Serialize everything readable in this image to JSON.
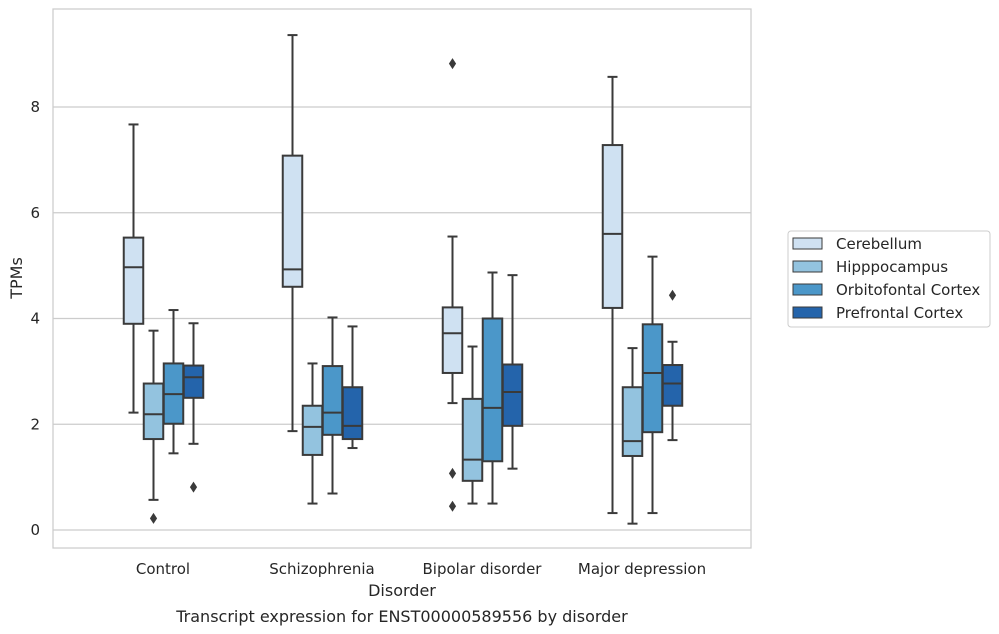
{
  "caption": "Transcript expression for ENST00000589556 by disorder",
  "colors": {
    "Cerebellum": "#cfe1f2",
    "Hipppocampus": "#93c3df",
    "Orbitofontal Cortex": "#4b97c9",
    "Prefrontal Cortex": "#2464ab",
    "line": "#3a3a3a",
    "grid": "#cccccc"
  },
  "chart_data": {
    "type": "box",
    "xlabel": "Disorder",
    "ylabel": "TPMs",
    "categories": [
      "Control",
      "Schizophrenia",
      "Bipolar disorder",
      "Major depression"
    ],
    "ylim": [
      -0.3,
      9.85
    ],
    "yticks": [
      0,
      2,
      4,
      6,
      8
    ],
    "grid": "horizontal",
    "legend_position": "right",
    "series": [
      {
        "name": "Cerebellum",
        "boxes": [
          {
            "whislo": 2.22,
            "q1": 3.9,
            "med": 4.97,
            "q3": 5.53,
            "whishi": 7.67,
            "fliers": []
          },
          {
            "whislo": 1.87,
            "q1": 4.6,
            "med": 4.93,
            "q3": 7.08,
            "whishi": 9.36,
            "fliers": []
          },
          {
            "whislo": 2.4,
            "q1": 2.97,
            "med": 3.72,
            "q3": 4.21,
            "whishi": 5.55,
            "fliers": [
              8.82,
              1.07,
              0.45
            ]
          },
          {
            "whislo": 0.32,
            "q1": 4.2,
            "med": 5.6,
            "q3": 7.28,
            "whishi": 8.57,
            "fliers": []
          }
        ]
      },
      {
        "name": "Hipppocampus",
        "boxes": [
          {
            "whislo": 0.57,
            "q1": 1.72,
            "med": 2.19,
            "q3": 2.77,
            "whishi": 3.77,
            "fliers": [
              0.22
            ]
          },
          {
            "whislo": 0.5,
            "q1": 1.42,
            "med": 1.95,
            "q3": 2.35,
            "whishi": 3.15,
            "fliers": []
          },
          {
            "whislo": 0.5,
            "q1": 0.93,
            "med": 1.33,
            "q3": 2.48,
            "whishi": 3.47,
            "fliers": []
          },
          {
            "whislo": 0.12,
            "q1": 1.4,
            "med": 1.68,
            "q3": 2.7,
            "whishi": 3.44,
            "fliers": []
          }
        ]
      },
      {
        "name": "Orbitofontal Cortex",
        "boxes": [
          {
            "whislo": 1.45,
            "q1": 2.01,
            "med": 2.57,
            "q3": 3.15,
            "whishi": 4.16,
            "fliers": []
          },
          {
            "whislo": 0.69,
            "q1": 1.8,
            "med": 2.22,
            "q3": 3.1,
            "whishi": 4.02,
            "fliers": []
          },
          {
            "whislo": 0.5,
            "q1": 1.3,
            "med": 2.31,
            "q3": 4.0,
            "whishi": 4.87,
            "fliers": []
          },
          {
            "whislo": 0.32,
            "q1": 1.85,
            "med": 2.97,
            "q3": 3.89,
            "whishi": 5.17,
            "fliers": []
          }
        ]
      },
      {
        "name": "Prefrontal Cortex",
        "boxes": [
          {
            "whislo": 1.63,
            "q1": 2.5,
            "med": 2.89,
            "q3": 3.11,
            "whishi": 3.91,
            "fliers": [
              0.81
            ]
          },
          {
            "whislo": 1.55,
            "q1": 1.72,
            "med": 1.97,
            "q3": 2.7,
            "whishi": 3.85,
            "fliers": []
          },
          {
            "whislo": 1.16,
            "q1": 1.97,
            "med": 2.61,
            "q3": 3.13,
            "whishi": 4.82,
            "fliers": []
          },
          {
            "whislo": 1.7,
            "q1": 2.35,
            "med": 2.77,
            "q3": 3.12,
            "whishi": 3.56,
            "fliers": [
              4.44
            ]
          }
        ]
      }
    ]
  }
}
